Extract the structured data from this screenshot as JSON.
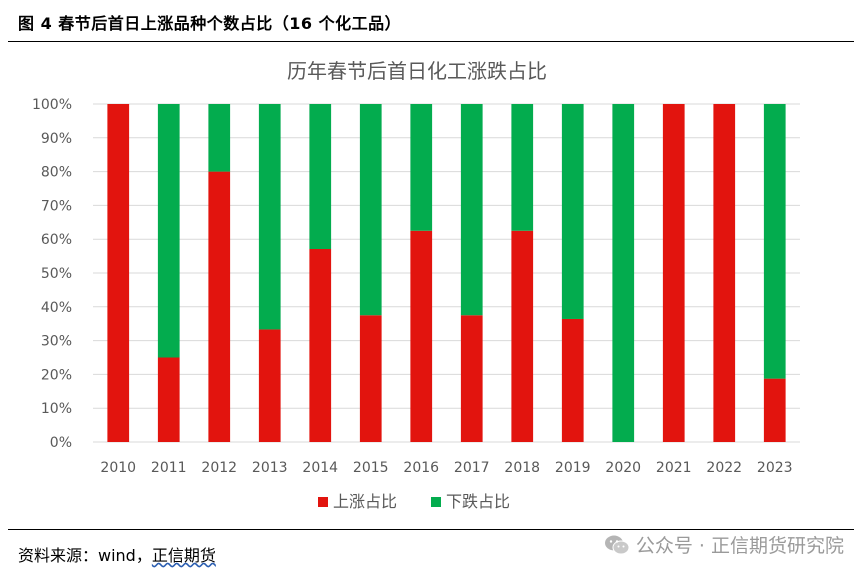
{
  "figure": {
    "caption": "图 4  春节后首日上涨品种个数占比（16 个化工品）"
  },
  "footer": {
    "source_prefix": "资料来源：wind，",
    "source_name": "正信期货",
    "watermark": "公众号 · 正信期货研究院",
    "watermark_icon": "wechat-icon"
  },
  "chart_data": {
    "type": "bar",
    "stacked": true,
    "title": "历年春节后首日化工涨跌占比",
    "categories": [
      "2010",
      "2011",
      "2012",
      "2013",
      "2014",
      "2015",
      "2016",
      "2017",
      "2018",
      "2019",
      "2020",
      "2021",
      "2022",
      "2023"
    ],
    "series": [
      {
        "name": "上涨占比",
        "color": "#e2140e",
        "values": [
          100,
          25,
          80,
          33.3,
          57.1,
          37.5,
          62.5,
          37.5,
          62.5,
          36.4,
          0,
          100,
          100,
          18.75
        ]
      },
      {
        "name": "下跌占比",
        "color": "#03ac4e",
        "values": [
          0,
          75,
          20,
          66.7,
          42.9,
          62.5,
          37.5,
          62.5,
          37.5,
          63.6,
          100,
          0,
          0,
          81.25
        ]
      }
    ],
    "ylim": [
      0,
      100
    ],
    "yticks": [
      "0%",
      "10%",
      "20%",
      "30%",
      "40%",
      "50%",
      "60%",
      "70%",
      "80%",
      "90%",
      "100%"
    ],
    "grid": true,
    "legend_position": "bottom"
  }
}
